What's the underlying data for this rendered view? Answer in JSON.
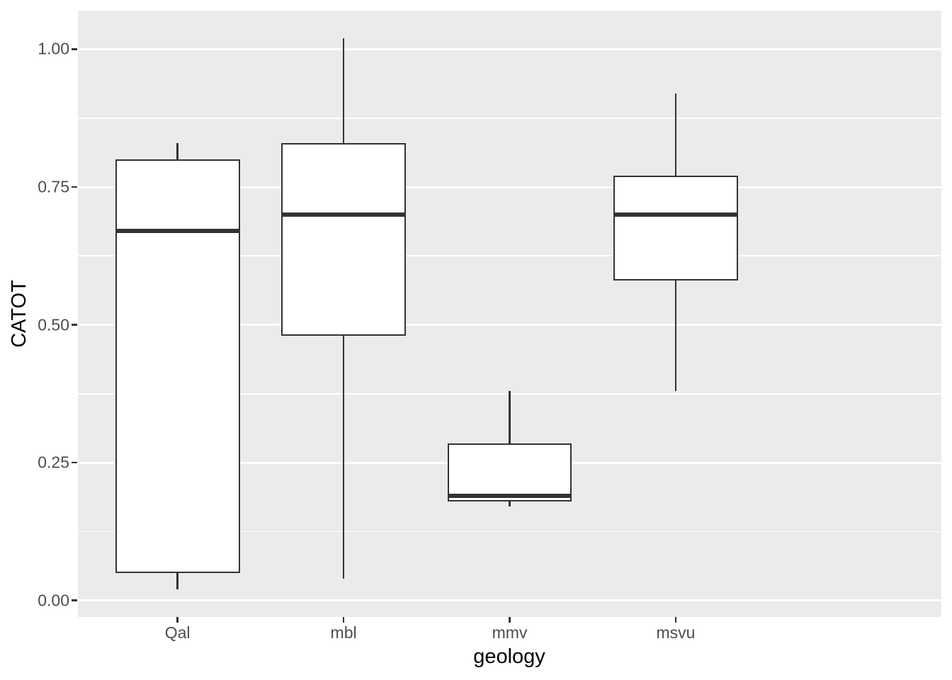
{
  "chart_data": {
    "type": "boxplot",
    "title": "",
    "xlabel": "geology",
    "ylabel": "CATOT",
    "categories": [
      "Qal",
      "mbl",
      "mmv",
      "msvu"
    ],
    "series": [
      {
        "name": "Qal",
        "whisker_min": 0.02,
        "q1": 0.05,
        "median": 0.67,
        "q3": 0.8,
        "whisker_max": 0.83,
        "outliers": []
      },
      {
        "name": "mbl",
        "whisker_min": 0.04,
        "q1": 0.48,
        "median": 0.7,
        "q3": 0.83,
        "whisker_max": 1.02,
        "outliers": []
      },
      {
        "name": "mmv",
        "whisker_min": 0.17,
        "q1": 0.18,
        "median": 0.19,
        "q3": 0.285,
        "whisker_max": 0.38,
        "outliers": []
      },
      {
        "name": "msvu",
        "whisker_min": 0.38,
        "q1": 0.58,
        "median": 0.7,
        "q3": 0.77,
        "whisker_max": 0.92,
        "outliers": []
      }
    ],
    "y_axis": {
      "ticks": [
        {
          "value": 0.0,
          "label": "0.00"
        },
        {
          "value": 0.25,
          "label": "0.25"
        },
        {
          "value": 0.5,
          "label": "0.50"
        },
        {
          "value": 0.75,
          "label": "0.75"
        },
        {
          "value": 1.0,
          "label": "1.00"
        }
      ],
      "minor_ticks": [
        0.125,
        0.375,
        0.625,
        0.875
      ],
      "range": [
        -0.03,
        1.07
      ]
    },
    "grid": "major+minor horizontal, white on grey panel",
    "legend": false,
    "style": {
      "panel_bg": "#EBEBEB",
      "grid_color": "#FFFFFF",
      "box_border": "#333333",
      "box_fill": "#FFFFFF",
      "axis_text_color": "#4D4D4D",
      "axis_title_color": "#000000",
      "tick_mark_color": "#333333"
    }
  }
}
